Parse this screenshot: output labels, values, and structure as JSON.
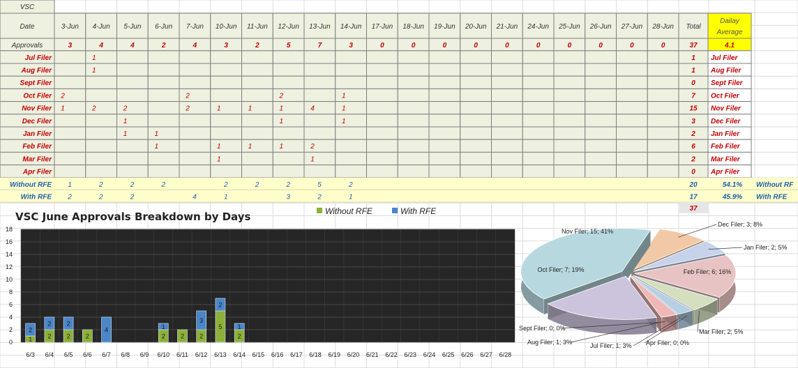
{
  "sheet": {
    "title_cell": "VSC",
    "date_header": "Date",
    "dates": [
      "3-Jun",
      "4-Jun",
      "5-Jun",
      "6-Jun",
      "7-Jun",
      "10-Jun",
      "11-Jun",
      "12-Jun",
      "13-Jun",
      "14-Jun",
      "17-Jun",
      "18-Jun",
      "19-Jun",
      "20-Jun",
      "21-Jun",
      "24-Jun",
      "25-Jun",
      "26-Jun",
      "27-Jun",
      "28-Jun"
    ],
    "total_header": "Total",
    "avg_header_line1": "Dailay",
    "avg_header_line2": "Average",
    "approvals": {
      "label": "Approvals",
      "values": [
        "3",
        "4",
        "4",
        "2",
        "4",
        "3",
        "2",
        "5",
        "7",
        "3",
        "0",
        "0",
        "0",
        "0",
        "0",
        "0",
        "0",
        "0",
        "0",
        "0"
      ],
      "total": "37",
      "average": "4.1"
    },
    "filer_rows": [
      {
        "label": "Jul Filer",
        "values": [
          "",
          "1",
          "",
          "",
          "",
          "",
          "",
          "",
          "",
          "",
          "",
          "",
          "",
          "",
          "",
          "",
          "",
          "",
          "",
          ""
        ],
        "total": "1",
        "side": "Jul Filer"
      },
      {
        "label": "Aug Filer",
        "values": [
          "",
          "1",
          "",
          "",
          "",
          "",
          "",
          "",
          "",
          "",
          "",
          "",
          "",
          "",
          "",
          "",
          "",
          "",
          "",
          ""
        ],
        "total": "1",
        "side": "Aug Filer"
      },
      {
        "label": "Sept Filer",
        "values": [
          "",
          "",
          "",
          "",
          "",
          "",
          "",
          "",
          "",
          "",
          "",
          "",
          "",
          "",
          "",
          "",
          "",
          "",
          "",
          ""
        ],
        "total": "0",
        "side": "Sept Filer"
      },
      {
        "label": "Oct Filer",
        "values": [
          "2",
          "",
          "",
          "",
          "2",
          "",
          "",
          "2",
          "",
          "1",
          "",
          "",
          "",
          "",
          "",
          "",
          "",
          "",
          "",
          ""
        ],
        "total": "7",
        "side": "Oct Filer"
      },
      {
        "label": "Nov Filer",
        "values": [
          "1",
          "2",
          "2",
          "",
          "2",
          "1",
          "1",
          "1",
          "4",
          "1",
          "",
          "",
          "",
          "",
          "",
          "",
          "",
          "",
          "",
          ""
        ],
        "total": "15",
        "side": "Nov Filer"
      },
      {
        "label": "Dec Filer",
        "values": [
          "",
          "",
          "1",
          "",
          "",
          "",
          "",
          "1",
          "",
          "1",
          "",
          "",
          "",
          "",
          "",
          "",
          "",
          "",
          "",
          ""
        ],
        "total": "3",
        "side": "Dec Filer"
      },
      {
        "label": "Jan Filer",
        "values": [
          "",
          "",
          "1",
          "1",
          "",
          "",
          "",
          "",
          "",
          "",
          "",
          "",
          "",
          "",
          "",
          "",
          "",
          "",
          "",
          ""
        ],
        "total": "2",
        "side": "Jan Filer"
      },
      {
        "label": "Feb Filer",
        "values": [
          "",
          "",
          "",
          "1",
          "",
          "1",
          "1",
          "1",
          "2",
          "",
          "",
          "",
          "",
          "",
          "",
          "",
          "",
          "",
          "",
          ""
        ],
        "total": "6",
        "side": "Feb Filer"
      },
      {
        "label": "Mar Filer",
        "values": [
          "",
          "",
          "",
          "",
          "",
          "1",
          "",
          "",
          "1",
          "",
          "",
          "",
          "",
          "",
          "",
          "",
          "",
          "",
          "",
          ""
        ],
        "total": "2",
        "side": "Mar Filer"
      },
      {
        "label": "Apr Filer",
        "values": [
          "",
          "",
          "",
          "",
          "",
          "",
          "",
          "",
          "",
          "",
          "",
          "",
          "",
          "",
          "",
          "",
          "",
          "",
          "",
          ""
        ],
        "total": "0",
        "side": "Apr Filer"
      }
    ],
    "rfe_rows": [
      {
        "label": "Without RFE",
        "values": [
          "1",
          "2",
          "2",
          "2",
          "",
          "2",
          "2",
          "2",
          "5",
          "2",
          "",
          "",
          "",
          "",
          "",
          "",
          "",
          "",
          "",
          ""
        ],
        "total": "20",
        "pct": "54.1%",
        "side": "Without RF"
      },
      {
        "label": "With RFE",
        "values": [
          "2",
          "2",
          "2",
          "",
          "4",
          "1",
          "",
          "3",
          "2",
          "1",
          "",
          "",
          "",
          "",
          "",
          "",
          "",
          "",
          "",
          ""
        ],
        "total": "17",
        "pct": "45.9%",
        "side": "With RFE"
      }
    ],
    "grand_total": "37",
    "colors": {
      "grid_bg": "#eef0e0",
      "highlight": "#ffff00",
      "rfe_band": "#ffffcc",
      "label_red": "#c00000",
      "label_blue": "#1f5fa8",
      "cell_border": "#7f7f7f"
    }
  },
  "chart_data": [
    {
      "type": "bar",
      "stacked": true,
      "title": "VSC June Approvals Breakdown by Days",
      "legend_position": "top",
      "categories": [
        "6/3",
        "6/4",
        "6/5",
        "6/6",
        "6/7",
        "6/8",
        "6/9",
        "6/10",
        "6/11",
        "6/12",
        "6/13",
        "6/14",
        "6/15",
        "6/16",
        "6/17",
        "6/18",
        "6/19",
        "6/20",
        "6/21",
        "6/22",
        "6/23",
        "6/24",
        "6/25",
        "6/26",
        "6/27",
        "6/28"
      ],
      "series": [
        {
          "name": "Without RFE",
          "color": "#8db03a",
          "values": [
            1,
            2,
            2,
            2,
            0,
            0,
            0,
            2,
            2,
            2,
            5,
            2,
            0,
            0,
            0,
            0,
            0,
            0,
            0,
            0,
            0,
            0,
            0,
            0,
            0,
            0
          ],
          "labels": [
            "1",
            "2",
            "2",
            "2",
            "",
            "",
            "",
            "2",
            "2",
            "2",
            "5",
            "2",
            "",
            "",
            "",
            "",
            "",
            "",
            "",
            "",
            "",
            "",
            "",
            "",
            "",
            ""
          ]
        },
        {
          "name": "With RFE",
          "color": "#4a86c8",
          "values": [
            2,
            2,
            2,
            0,
            4,
            0,
            0,
            1,
            0,
            3,
            2,
            1,
            0,
            0,
            0,
            0,
            0,
            0,
            0,
            0,
            0,
            0,
            0,
            0,
            0,
            0
          ],
          "labels": [
            "2",
            "2",
            "2",
            "",
            "4",
            "",
            "",
            "1",
            "",
            "3",
            "2",
            "1",
            "",
            "",
            "",
            "",
            "",
            "",
            "",
            "",
            "",
            "",
            "",
            "",
            "",
            ""
          ]
        }
      ],
      "y_ticks": [
        "0",
        "2",
        "4",
        "6",
        "8",
        "10",
        "12",
        "14",
        "16",
        "18"
      ],
      "ylim": [
        0,
        18
      ],
      "grid": true,
      "plot_background": "#262626"
    },
    {
      "type": "pie",
      "three_d": true,
      "slices": [
        {
          "label": "Nov Filer; 15; 41%",
          "name": "Nov Filer",
          "value": 15,
          "color": "#b8d8df"
        },
        {
          "label": "Dec Filer; 3; 8%",
          "name": "Dec Filer",
          "value": 3,
          "color": "#f2c9a6"
        },
        {
          "label": "Jan Filer; 2; 5%",
          "name": "Jan Filer",
          "value": 2,
          "color": "#c6d3ea"
        },
        {
          "label": "Feb Filer; 6; 16%",
          "name": "Feb Filer",
          "value": 6,
          "color": "#e8c3c3"
        },
        {
          "label": "Mar Filer; 2; 5%",
          "name": "Mar Filer",
          "value": 2,
          "color": "#d3dfbf"
        },
        {
          "label": "Apr Filer; 0; 0%",
          "name": "Apr Filer",
          "value": 0,
          "color": "#c9c3d8"
        },
        {
          "label": "Jul Filer; 1; 3%",
          "name": "Jul Filer",
          "value": 1,
          "color": "#b6cfe4"
        },
        {
          "label": "Aug Filer; 1; 3%",
          "name": "Aug Filer",
          "value": 1,
          "color": "#f0b7b7"
        },
        {
          "label": "Sept Filer; 0; 0%",
          "name": "Sept Filer",
          "value": 0,
          "color": "#e0e0e0"
        },
        {
          "label": "Oct Filer; 7; 19%",
          "name": "Oct Filer",
          "value": 7,
          "color": "#ccc3dc"
        }
      ]
    }
  ]
}
